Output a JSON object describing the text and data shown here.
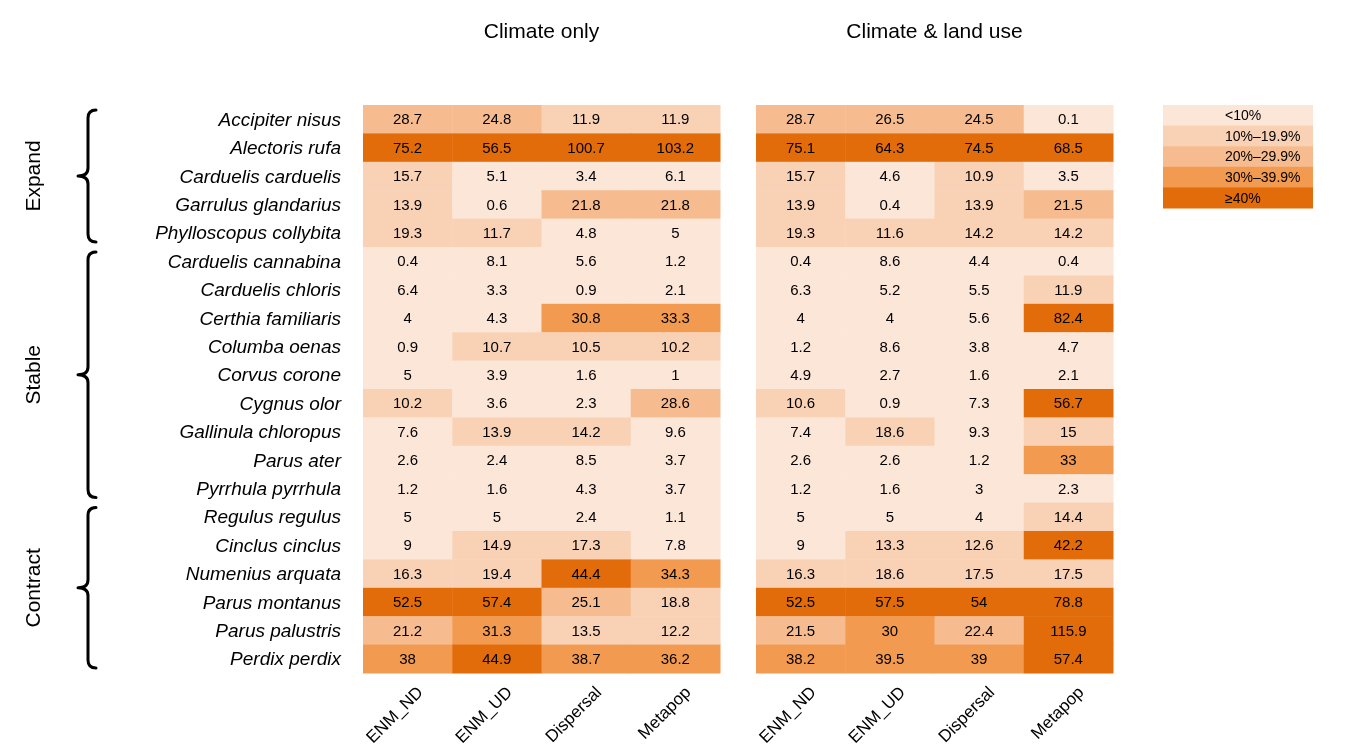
{
  "chart_data": [
    {
      "type": "heatmap",
      "title": "Climate only",
      "categories": [
        "ENM_ND",
        "ENM_UD",
        "Dispersal",
        "Metapop"
      ],
      "y_categories": [
        "Accipiter nisus",
        "Alectoris rufa",
        "Carduelis carduelis",
        "Garrulus glandarius",
        "Phylloscopus collybita",
        "Carduelis cannabina",
        "Carduelis chloris",
        "Certhia familiaris",
        "Columba oenas",
        "Corvus corone",
        "Cygnus olor",
        "Gallinula chloropus",
        "Parus ater",
        "Pyrrhula pyrrhula",
        "Regulus regulus",
        "Cinclus cinclus",
        "Numenius arquata",
        "Parus montanus",
        "Parus palustris",
        "Perdix perdix"
      ],
      "cells": [
        [
          28.7,
          24.8,
          11.9,
          11.9
        ],
        [
          75.2,
          56.5,
          100.7,
          103.2
        ],
        [
          15.7,
          5.1,
          3.4,
          6.1
        ],
        [
          13.9,
          0.6,
          21.8,
          21.8
        ],
        [
          19.3,
          11.7,
          4.8,
          5
        ],
        [
          0.4,
          8.1,
          5.6,
          1.2
        ],
        [
          6.4,
          3.3,
          0.9,
          2.1
        ],
        [
          4,
          4.3,
          30.8,
          33.3
        ],
        [
          0.9,
          10.7,
          10.5,
          10.2
        ],
        [
          5,
          3.9,
          1.6,
          1
        ],
        [
          10.2,
          3.6,
          2.3,
          28.6
        ],
        [
          7.6,
          13.9,
          14.2,
          9.6
        ],
        [
          2.6,
          2.4,
          8.5,
          3.7
        ],
        [
          1.2,
          1.6,
          4.3,
          3.7
        ],
        [
          5,
          5,
          2.4,
          1.1
        ],
        [
          9,
          14.9,
          17.3,
          7.8
        ],
        [
          16.3,
          19.4,
          44.4,
          34.3
        ],
        [
          52.5,
          57.4,
          25.1,
          18.8
        ],
        [
          21.2,
          31.3,
          13.5,
          12.2
        ],
        [
          38,
          44.9,
          38.7,
          36.2
        ]
      ],
      "data_labels": true,
      "annotations": [
        "Expand",
        "Stable",
        "Contract"
      ]
    },
    {
      "type": "heatmap",
      "title": "Climate & land use",
      "categories": [
        "ENM_ND",
        "ENM_UD",
        "Dispersal",
        "Metapop"
      ],
      "y_categories": [
        null,
        null,
        null,
        null,
        null,
        null,
        null,
        null,
        null,
        null,
        null,
        null,
        null,
        null,
        null,
        null,
        null,
        null,
        null,
        null
      ],
      "cells": [
        [
          28.7,
          26.5,
          24.5,
          0.1
        ],
        [
          75.1,
          64.3,
          74.5,
          68.5
        ],
        [
          15.7,
          4.6,
          10.9,
          3.5
        ],
        [
          13.9,
          0.4,
          13.9,
          21.5
        ],
        [
          19.3,
          11.6,
          14.2,
          14.2
        ],
        [
          0.4,
          8.6,
          4.4,
          0.4
        ],
        [
          6.3,
          5.2,
          5.5,
          11.9
        ],
        [
          4,
          4,
          5.6,
          82.4
        ],
        [
          1.2,
          8.6,
          3.8,
          4.7
        ],
        [
          4.9,
          2.7,
          1.6,
          2.1
        ],
        [
          10.6,
          0.9,
          7.3,
          56.7
        ],
        [
          7.4,
          18.6,
          9.3,
          15
        ],
        [
          2.6,
          2.6,
          1.2,
          33
        ],
        [
          1.2,
          1.6,
          3,
          2.3
        ],
        [
          5,
          5,
          4,
          14.4
        ],
        [
          9,
          13.3,
          12.6,
          42.2
        ],
        [
          16.3,
          18.6,
          17.5,
          17.5
        ],
        [
          52.5,
          57.5,
          54,
          78.8
        ],
        [
          21.5,
          30,
          22.4,
          115.9
        ],
        [
          38.2,
          39.5,
          39,
          57.4
        ]
      ],
      "colors": [
        "#fce6d8",
        "#f9d2b6",
        "#f6bc90",
        "#f29a50",
        "#e36c0a"
      ],
      "clim": [
        0,
        50
      ],
      "data_labels": true,
      "tick_labels": "x",
      "cticks": [
        {
          "value": 5,
          "label": "<10%"
        },
        {
          "value": 15,
          "label": "10%–19.9%"
        },
        {
          "value": 25,
          "label": "20%–29.9%"
        },
        {
          "value": 35,
          "label": "30%–39.9%"
        },
        {
          "value": 45,
          "label": "≥40%"
        }
      ]
    }
  ]
}
